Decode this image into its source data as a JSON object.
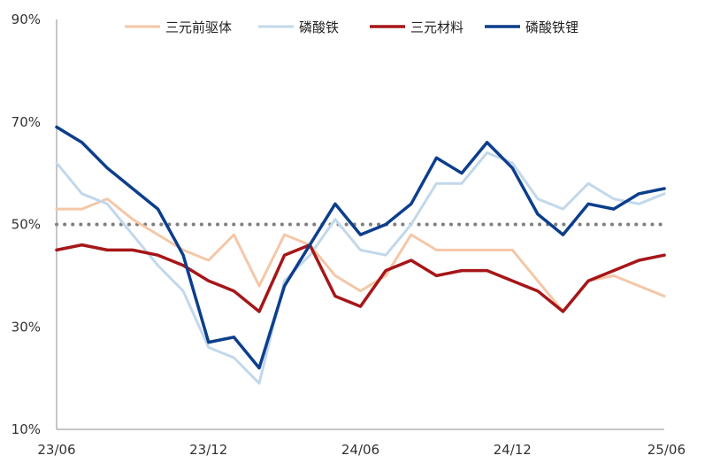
{
  "chart_data": {
    "type": "line",
    "title": "",
    "xlabel": "",
    "ylabel": "",
    "ylim": [
      10,
      90
    ],
    "yticks": [
      "10%",
      "30%",
      "50%",
      "70%",
      "90%"
    ],
    "ytick_values": [
      10,
      30,
      50,
      70,
      90
    ],
    "xticks": [
      "23/06",
      "23/12",
      "24/06",
      "24/12",
      "25/06"
    ],
    "xtick_index": [
      0,
      6,
      12,
      18,
      24
    ],
    "x": [
      "23/06",
      "23/07",
      "23/08",
      "23/09",
      "23/10",
      "23/11",
      "23/12",
      "24/01",
      "24/02",
      "24/03",
      "24/04",
      "24/05",
      "24/06",
      "24/07",
      "24/08",
      "24/09",
      "24/10",
      "24/11",
      "24/12",
      "25/01",
      "25/02",
      "25/03",
      "25/04",
      "25/05",
      "25/06"
    ],
    "reference_line": {
      "value": 50,
      "style": "dotted",
      "color": "#7f7f7f"
    },
    "legend_position": "top",
    "grid": false,
    "series": [
      {
        "name": "三元前驱体",
        "color": "#f4c7a7",
        "width": 3,
        "values": [
          53,
          53,
          55,
          51,
          48,
          45,
          43,
          48,
          38,
          48,
          46,
          40,
          37,
          40,
          48,
          45,
          45,
          45,
          45,
          39,
          33,
          39,
          40,
          38,
          36
        ]
      },
      {
        "name": "磷酸铁",
        "color": "#c2d8ea",
        "width": 3,
        "values": [
          62,
          56,
          54,
          48,
          42,
          37,
          26,
          24,
          19,
          39,
          44,
          51,
          45,
          44,
          50,
          58,
          58,
          64,
          62,
          55,
          53,
          58,
          55,
          54,
          56
        ]
      },
      {
        "name": "三元材料",
        "color": "#a61618",
        "width": 3.5,
        "values": [
          45,
          46,
          45,
          45,
          44,
          42,
          39,
          37,
          33,
          44,
          46,
          36,
          34,
          41,
          43,
          40,
          41,
          41,
          39,
          37,
          33,
          39,
          41,
          43,
          44
        ]
      },
      {
        "name": "磷酸铁锂",
        "color": "#0c3e8c",
        "width": 3.5,
        "values": [
          69,
          66,
          61,
          57,
          53,
          44,
          27,
          28,
          22,
          38,
          46,
          54,
          48,
          50,
          54,
          63,
          60,
          66,
          61,
          52,
          48,
          54,
          53,
          56,
          57
        ]
      }
    ]
  }
}
